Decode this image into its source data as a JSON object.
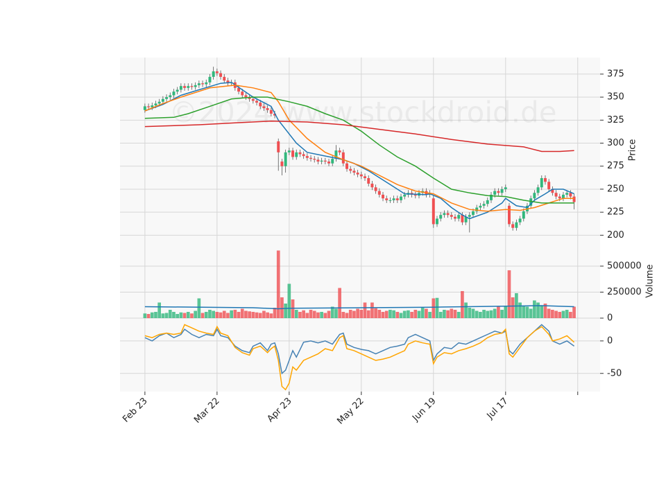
{
  "chart_data": {
    "type": "candlestick",
    "watermark": "©2024 www.stockdroid.de",
    "xlim": [
      -6.9,
      126.2
    ],
    "xticks": [
      0,
      20,
      40,
      60,
      80,
      100,
      120
    ],
    "xtick_labels": [
      "Feb 23",
      "Mar 22",
      "Apr 23",
      "May 22",
      "Jun 19",
      "Jul 17",
      null
    ],
    "grid": true,
    "up_color": "#31b77c",
    "down_color": "#ef4f52",
    "price": {
      "ylabel": "Price",
      "ylim": [
        192,
        393
      ],
      "yticks": [
        200,
        225,
        250,
        275,
        300,
        325,
        350,
        375
      ],
      "open": [
        336,
        340,
        339,
        341,
        343,
        345,
        348,
        350,
        352,
        356,
        358,
        362,
        360,
        362,
        361,
        363,
        365,
        364,
        366,
        372,
        378,
        376,
        372,
        368,
        365,
        366,
        360,
        356,
        352,
        350,
        348,
        346,
        344,
        340,
        338,
        336,
        332,
        302,
        280,
        275,
        290,
        292,
        285,
        290,
        288,
        286,
        284,
        283,
        282,
        280,
        281,
        280,
        278,
        283,
        292,
        290,
        278,
        272,
        270,
        268,
        266,
        264,
        262,
        256,
        252,
        248,
        244,
        240,
        238,
        238,
        240,
        238,
        242,
        244,
        246,
        244,
        243,
        246,
        248,
        244,
        240,
        212,
        218,
        222,
        224,
        222,
        220,
        218,
        222,
        214,
        220,
        222,
        226,
        230,
        232,
        234,
        238,
        244,
        248,
        246,
        250,
        232,
        212,
        208,
        214,
        218,
        226,
        232,
        240,
        246,
        252,
        262,
        258,
        250,
        246,
        242,
        240,
        244,
        246,
        242
      ],
      "high": [
        343,
        343,
        344,
        346,
        348,
        351,
        353,
        355,
        359,
        361,
        365,
        365,
        365,
        365,
        366,
        368,
        368,
        369,
        375,
        383,
        381,
        379,
        375,
        371,
        369,
        369,
        363,
        359,
        355,
        353,
        351,
        349,
        347,
        343,
        341,
        339,
        335,
        305,
        283,
        293,
        295,
        295,
        293,
        293,
        291,
        289,
        287,
        286,
        285,
        284,
        284,
        283,
        286,
        298,
        295,
        293,
        281,
        275,
        273,
        271,
        269,
        267,
        265,
        259,
        255,
        251,
        247,
        243,
        241,
        243,
        243,
        245,
        247,
        249,
        249,
        247,
        249,
        251,
        251,
        249,
        243,
        221,
        225,
        227,
        227,
        225,
        223,
        225,
        225,
        223,
        225,
        229,
        233,
        235,
        237,
        241,
        247,
        251,
        251,
        253,
        255,
        235,
        215,
        217,
        221,
        229,
        235,
        243,
        249,
        255,
        265,
        265,
        261,
        253,
        249,
        245,
        247,
        249,
        249,
        245
      ],
      "low": [
        333,
        336,
        336,
        338,
        340,
        342,
        345,
        347,
        349,
        353,
        355,
        357,
        357,
        358,
        358,
        360,
        361,
        361,
        363,
        369,
        373,
        369,
        365,
        362,
        362,
        357,
        353,
        349,
        347,
        345,
        343,
        341,
        337,
        335,
        333,
        329,
        327,
        270,
        265,
        268,
        287,
        282,
        282,
        285,
        283,
        281,
        280,
        279,
        277,
        277,
        277,
        275,
        275,
        280,
        287,
        275,
        269,
        267,
        265,
        263,
        261,
        259,
        253,
        249,
        245,
        241,
        237,
        235,
        235,
        235,
        235,
        235,
        239,
        241,
        241,
        240,
        240,
        243,
        241,
        241,
        208,
        209,
        215,
        219,
        219,
        217,
        215,
        215,
        211,
        211,
        203,
        219,
        223,
        227,
        229,
        231,
        235,
        241,
        243,
        243,
        247,
        209,
        205,
        205,
        211,
        215,
        223,
        229,
        237,
        243,
        249,
        255,
        247,
        243,
        239,
        237,
        237,
        241,
        239,
        228
      ],
      "close": [
        340,
        339,
        341,
        343,
        345,
        348,
        350,
        352,
        356,
        358,
        362,
        360,
        362,
        361,
        363,
        365,
        364,
        366,
        372,
        378,
        376,
        372,
        368,
        365,
        366,
        360,
        356,
        352,
        350,
        348,
        346,
        344,
        340,
        338,
        336,
        332,
        330,
        290,
        275,
        290,
        292,
        285,
        290,
        288,
        286,
        284,
        283,
        282,
        280,
        281,
        280,
        278,
        283,
        292,
        290,
        278,
        272,
        270,
        268,
        266,
        264,
        262,
        256,
        252,
        248,
        244,
        240,
        238,
        238,
        240,
        238,
        242,
        244,
        246,
        244,
        243,
        246,
        248,
        244,
        246,
        212,
        218,
        222,
        224,
        222,
        220,
        218,
        222,
        214,
        220,
        222,
        226,
        230,
        232,
        234,
        238,
        244,
        248,
        246,
        250,
        252,
        212,
        208,
        214,
        218,
        226,
        232,
        240,
        246,
        252,
        262,
        258,
        250,
        246,
        242,
        240,
        244,
        246,
        242,
        236
      ],
      "series": [
        {
          "color": "#1f77b4",
          "x": [
            0,
            5,
            10,
            15,
            21,
            24,
            30,
            35,
            37,
            42,
            45,
            50,
            55,
            58,
            62,
            68,
            72,
            78,
            79,
            82,
            85,
            88,
            90,
            95,
            99,
            100,
            103,
            106,
            108,
            111,
            113,
            116,
            119
          ],
          "values": [
            335,
            342,
            352,
            358,
            365,
            366,
            350,
            340,
            325,
            300,
            290,
            286,
            282,
            278,
            270,
            255,
            245,
            244,
            245,
            240,
            230,
            222,
            218,
            225,
            235,
            240,
            232,
            230,
            238,
            245,
            250,
            250,
            245
          ]
        },
        {
          "color": "#ff7f0e",
          "x": [
            0,
            5,
            10,
            18,
            25,
            30,
            35,
            37,
            40,
            45,
            50,
            55,
            60,
            65,
            70,
            75,
            80,
            85,
            90,
            95,
            100,
            104,
            108,
            112,
            116,
            119
          ],
          "values": [
            335,
            343,
            350,
            360,
            363,
            360,
            355,
            345,
            325,
            305,
            290,
            282,
            275,
            265,
            255,
            248,
            245,
            235,
            228,
            226,
            228,
            227,
            230,
            235,
            240,
            240
          ]
        },
        {
          "color": "#2ca02c",
          "x": [
            0,
            8,
            12,
            18,
            24,
            30,
            34,
            40,
            45,
            50,
            55,
            60,
            65,
            70,
            75,
            80,
            85,
            90,
            95,
            100,
            105,
            110,
            119
          ],
          "values": [
            327,
            328,
            332,
            340,
            348,
            350,
            350,
            345,
            340,
            332,
            325,
            313,
            298,
            285,
            275,
            262,
            250,
            246,
            243,
            242,
            238,
            235,
            235
          ]
        },
        {
          "color": "#d62728",
          "x": [
            0,
            15,
            25,
            35,
            45,
            55,
            65,
            75,
            85,
            95,
            105,
            110,
            115,
            119
          ],
          "values": [
            318,
            320,
            322,
            324,
            323,
            320,
            315,
            310,
            304,
            299,
            296,
            291,
            291,
            292
          ]
        }
      ]
    },
    "volume": {
      "ylabel": "Volume",
      "ylim": [
        0,
        713000
      ],
      "yticks": [
        0,
        250000,
        500000
      ],
      "values": [
        45000,
        40000,
        55000,
        60000,
        150000,
        45000,
        50000,
        80000,
        60000,
        40000,
        55000,
        50000,
        60000,
        45000,
        70000,
        190000,
        50000,
        60000,
        80000,
        70000,
        60000,
        55000,
        70000,
        50000,
        75000,
        80000,
        60000,
        90000,
        70000,
        65000,
        60000,
        55000,
        50000,
        70000,
        55000,
        45000,
        100000,
        650000,
        200000,
        140000,
        330000,
        180000,
        80000,
        60000,
        75000,
        50000,
        80000,
        70000,
        55000,
        60000,
        50000,
        70000,
        110000,
        90000,
        290000,
        60000,
        50000,
        80000,
        70000,
        90000,
        80000,
        150000,
        75000,
        150000,
        95000,
        80000,
        60000,
        70000,
        80000,
        75000,
        60000,
        50000,
        70000,
        75000,
        60000,
        80000,
        70000,
        100000,
        90000,
        60000,
        190000,
        195000,
        60000,
        80000,
        75000,
        90000,
        80000,
        60000,
        260000,
        150000,
        100000,
        90000,
        70000,
        60000,
        80000,
        70000,
        75000,
        90000,
        110000,
        80000,
        110000,
        460000,
        200000,
        240000,
        150000,
        120000,
        110000,
        90000,
        170000,
        150000,
        120000,
        140000,
        90000,
        80000,
        70000,
        60000,
        70000,
        80000,
        60000,
        110000
      ],
      "series": [
        {
          "color": "#1f77b4",
          "x": [
            0,
            30,
            37,
            40,
            60,
            80,
            100,
            110,
            119
          ],
          "values": [
            110000,
            100000,
            90000,
            95000,
            100000,
            105000,
            115000,
            120000,
            110000
          ]
        }
      ]
    },
    "oscillator": {
      "ylim": [
        -78,
        34
      ],
      "yticks": [
        -50,
        0
      ],
      "series": [
        {
          "color": "#4682b4",
          "x": [
            0,
            2,
            4,
            6,
            8,
            10,
            11,
            13,
            15,
            17,
            19,
            20,
            21,
            23,
            25,
            27,
            29,
            30,
            32,
            34,
            35,
            36,
            37,
            38,
            39,
            41,
            42,
            44,
            46,
            48,
            50,
            52,
            54,
            55,
            56,
            58,
            60,
            62,
            64,
            66,
            68,
            70,
            72,
            73,
            75,
            77,
            79,
            80,
            81,
            83,
            85,
            87,
            89,
            91,
            93,
            95,
            97,
            99,
            100,
            101,
            102,
            104,
            106,
            108,
            110,
            112,
            113,
            115,
            117,
            119
          ],
          "values": [
            5,
            0,
            8,
            12,
            5,
            10,
            18,
            10,
            5,
            10,
            8,
            18,
            8,
            5,
            -8,
            -15,
            -18,
            -8,
            -3,
            -15,
            -5,
            -3,
            -20,
            -50,
            -45,
            -15,
            -25,
            -2,
            0,
            -3,
            0,
            -5,
            10,
            12,
            -5,
            -10,
            -13,
            -15,
            -20,
            -15,
            -10,
            -8,
            -5,
            5,
            10,
            5,
            0,
            -30,
            -20,
            -10,
            -12,
            -3,
            -5,
            0,
            5,
            10,
            15,
            12,
            15,
            -15,
            -20,
            -5,
            5,
            15,
            25,
            15,
            0,
            -5,
            0,
            -8
          ]
        },
        {
          "color": "#ffa500",
          "x": [
            0,
            2,
            4,
            6,
            8,
            10,
            11,
            13,
            15,
            17,
            19,
            20,
            21,
            23,
            25,
            27,
            29,
            30,
            32,
            34,
            35,
            36,
            37,
            38,
            39,
            40,
            41,
            42,
            44,
            46,
            48,
            50,
            52,
            54,
            55,
            56,
            58,
            60,
            62,
            64,
            66,
            68,
            70,
            72,
            73,
            75,
            77,
            79,
            80,
            81,
            83,
            85,
            87,
            89,
            91,
            93,
            95,
            97,
            99,
            100,
            101,
            102,
            104,
            106,
            108,
            110,
            112,
            113,
            115,
            117,
            119
          ],
          "values": [
            8,
            5,
            10,
            12,
            10,
            12,
            25,
            20,
            15,
            12,
            10,
            22,
            12,
            8,
            -10,
            -18,
            -22,
            -12,
            -8,
            -18,
            -12,
            -8,
            -30,
            -70,
            -75,
            -65,
            -40,
            -45,
            -30,
            -25,
            -20,
            -12,
            -15,
            5,
            8,
            -12,
            -15,
            -20,
            -25,
            -30,
            -28,
            -25,
            -20,
            -15,
            -5,
            0,
            -3,
            -5,
            -35,
            -25,
            -18,
            -20,
            -15,
            -12,
            -8,
            -3,
            5,
            10,
            12,
            18,
            -20,
            -25,
            -10,
            5,
            15,
            22,
            10,
            0,
            3,
            8,
            -2
          ]
        }
      ]
    }
  }
}
